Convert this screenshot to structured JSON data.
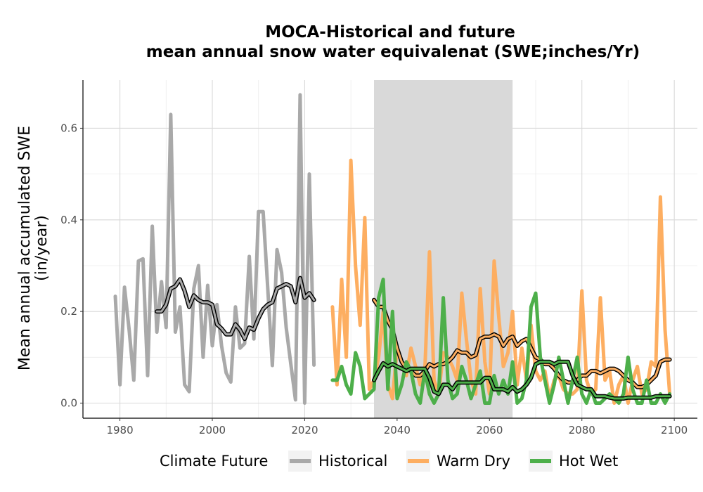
{
  "chart_data": {
    "type": "line",
    "title": "MOCA-Historical and future",
    "subtitle": "mean annual snow water equivalenat (SWE;inches/Yr)",
    "ylabel_line1": "Mean annual accumulated SWE",
    "ylabel_line2": "(in/year)",
    "xlabel": "",
    "xlim": [
      1972,
      2105
    ],
    "ylim": [
      -0.033,
      0.705
    ],
    "x_ticks": [
      1980,
      2000,
      2020,
      2040,
      2060,
      2080,
      2100
    ],
    "y_ticks": [
      0.0,
      0.2,
      0.4,
      0.6
    ],
    "y_tick_labels": [
      "0.0",
      "0.2",
      "0.4",
      "0.6"
    ],
    "grid": true,
    "shaded_period": [
      2035,
      2065
    ],
    "shade_color": "#d9d9d9",
    "legend": {
      "title": "Climate Future",
      "position": "bottom",
      "items": [
        {
          "label": "Historical",
          "color": "#a9a9a9"
        },
        {
          "label": "Warm Dry",
          "color": "#fdae61"
        },
        {
          "label": "Hot Wet",
          "color": "#4daf4a"
        }
      ]
    },
    "series": [
      {
        "name": "Historical",
        "color": "#a9a9a9",
        "x": [
          1979,
          1980,
          1981,
          1982,
          1983,
          1984,
          1985,
          1986,
          1987,
          1988,
          1989,
          1990,
          1991,
          1992,
          1993,
          1994,
          1995,
          1996,
          1997,
          1998,
          1999,
          2000,
          2001,
          2002,
          2003,
          2004,
          2005,
          2006,
          2007,
          2008,
          2009,
          2010,
          2011,
          2012,
          2013,
          2014,
          2015,
          2016,
          2017,
          2018,
          2019,
          2020,
          2021,
          2022
        ],
        "values": [
          0.233,
          0.04,
          0.253,
          0.16,
          0.05,
          0.31,
          0.315,
          0.06,
          0.386,
          0.155,
          0.265,
          0.165,
          0.63,
          0.155,
          0.21,
          0.04,
          0.025,
          0.25,
          0.3,
          0.1,
          0.257,
          0.125,
          0.215,
          0.126,
          0.066,
          0.046,
          0.21,
          0.12,
          0.13,
          0.32,
          0.14,
          0.418,
          0.418,
          0.25,
          0.082,
          0.335,
          0.285,
          0.165,
          0.085,
          0.007,
          0.673,
          0.0,
          0.5,
          0.083
        ]
      },
      {
        "name": "Historical smoothed",
        "color": "#000000",
        "x": [
          1988,
          1989,
          1990,
          1991,
          1992,
          1993,
          1994,
          1995,
          1996,
          1997,
          1998,
          1999,
          2000,
          2001,
          2002,
          2003,
          2004,
          2005,
          2006,
          2007,
          2008,
          2009,
          2010,
          2011,
          2012,
          2013,
          2014,
          2015,
          2016,
          2017,
          2018,
          2019,
          2020,
          2021,
          2022
        ],
        "values": [
          0.2,
          0.2,
          0.215,
          0.25,
          0.255,
          0.27,
          0.245,
          0.21,
          0.235,
          0.225,
          0.22,
          0.22,
          0.215,
          0.172,
          0.163,
          0.15,
          0.15,
          0.172,
          0.16,
          0.14,
          0.165,
          0.16,
          0.185,
          0.205,
          0.215,
          0.22,
          0.25,
          0.255,
          0.26,
          0.255,
          0.22,
          0.273,
          0.23,
          0.24,
          0.225
        ]
      },
      {
        "name": "Warm Dry",
        "color": "#fdae61",
        "x": [
          2026,
          2027,
          2028,
          2029,
          2030,
          2031,
          2032,
          2033,
          2034,
          2035,
          2036,
          2037,
          2038,
          2039,
          2040,
          2041,
          2042,
          2043,
          2044,
          2045,
          2046,
          2047,
          2048,
          2049,
          2050,
          2051,
          2052,
          2053,
          2054,
          2055,
          2056,
          2057,
          2058,
          2059,
          2060,
          2061,
          2062,
          2063,
          2064,
          2065,
          2066,
          2067,
          2068,
          2069,
          2070,
          2071,
          2072,
          2073,
          2074,
          2075,
          2076,
          2077,
          2078,
          2079,
          2080,
          2081,
          2082,
          2083,
          2084,
          2085,
          2086,
          2087,
          2088,
          2089,
          2090,
          2091,
          2092,
          2093,
          2094,
          2095,
          2096,
          2097,
          2098,
          2099
        ],
        "values": [
          0.21,
          0.04,
          0.27,
          0.1,
          0.53,
          0.3,
          0.17,
          0.405,
          0.03,
          0.05,
          0.1,
          0.2,
          0.04,
          0.01,
          0.12,
          0.09,
          0.06,
          0.12,
          0.08,
          0.04,
          0.07,
          0.33,
          0.05,
          0.02,
          0.11,
          0.1,
          0.08,
          0.05,
          0.24,
          0.14,
          0.05,
          0.02,
          0.25,
          0.09,
          0.02,
          0.31,
          0.19,
          0.08,
          0.11,
          0.2,
          0.04,
          0.12,
          0.05,
          0.17,
          0.07,
          0.05,
          0.07,
          0.01,
          0.05,
          0.06,
          0.03,
          0.02,
          0.02,
          0.03,
          0.245,
          0.05,
          0.02,
          0.03,
          0.23,
          0.05,
          0.07,
          0.0,
          0.04,
          0.06,
          0.0,
          0.05,
          0.08,
          0.02,
          0.03,
          0.09,
          0.08,
          0.45,
          0.16,
          0.02
        ]
      },
      {
        "name": "Warm Dry smoothed",
        "color": "#000000",
        "x": [
          2035,
          2036,
          2037,
          2038,
          2039,
          2040,
          2041,
          2042,
          2043,
          2044,
          2045,
          2046,
          2047,
          2048,
          2049,
          2050,
          2051,
          2052,
          2053,
          2054,
          2055,
          2056,
          2057,
          2058,
          2059,
          2060,
          2061,
          2062,
          2063,
          2064,
          2065,
          2066,
          2067,
          2068,
          2069,
          2070,
          2071,
          2072,
          2073,
          2074,
          2075,
          2076,
          2077,
          2078,
          2079,
          2080,
          2081,
          2082,
          2083,
          2084,
          2085,
          2086,
          2087,
          2088,
          2089,
          2090,
          2091,
          2092,
          2093,
          2094,
          2095,
          2096,
          2097,
          2098,
          2099
        ],
        "values": [
          0.225,
          0.21,
          0.21,
          0.18,
          0.16,
          0.12,
          0.09,
          0.075,
          0.07,
          0.06,
          0.06,
          0.07,
          0.085,
          0.08,
          0.085,
          0.085,
          0.09,
          0.1,
          0.115,
          0.11,
          0.11,
          0.1,
          0.105,
          0.14,
          0.145,
          0.145,
          0.15,
          0.145,
          0.125,
          0.14,
          0.145,
          0.125,
          0.135,
          0.14,
          0.12,
          0.1,
          0.095,
          0.085,
          0.085,
          0.075,
          0.06,
          0.05,
          0.045,
          0.045,
          0.05,
          0.06,
          0.06,
          0.07,
          0.07,
          0.065,
          0.07,
          0.075,
          0.075,
          0.07,
          0.06,
          0.05,
          0.045,
          0.035,
          0.035,
          0.04,
          0.05,
          0.06,
          0.09,
          0.095,
          0.095
        ]
      },
      {
        "name": "Hot Wet",
        "color": "#4daf4a",
        "x": [
          2026,
          2027,
          2028,
          2029,
          2030,
          2031,
          2032,
          2033,
          2034,
          2035,
          2036,
          2037,
          2038,
          2039,
          2040,
          2041,
          2042,
          2043,
          2044,
          2045,
          2046,
          2047,
          2048,
          2049,
          2050,
          2051,
          2052,
          2053,
          2054,
          2055,
          2056,
          2057,
          2058,
          2059,
          2060,
          2061,
          2062,
          2063,
          2064,
          2065,
          2066,
          2067,
          2068,
          2069,
          2070,
          2071,
          2072,
          2073,
          2074,
          2075,
          2076,
          2077,
          2078,
          2079,
          2080,
          2081,
          2082,
          2083,
          2084,
          2085,
          2086,
          2087,
          2088,
          2089,
          2090,
          2091,
          2092,
          2093,
          2094,
          2095,
          2096,
          2097,
          2098,
          2099
        ],
        "values": [
          0.05,
          0.05,
          0.08,
          0.04,
          0.02,
          0.11,
          0.08,
          0.01,
          0.02,
          0.03,
          0.23,
          0.27,
          0.03,
          0.2,
          0.01,
          0.04,
          0.09,
          0.07,
          0.02,
          0.0,
          0.07,
          0.02,
          0.0,
          0.02,
          0.23,
          0.05,
          0.01,
          0.02,
          0.08,
          0.05,
          0.01,
          0.04,
          0.07,
          0.0,
          0.0,
          0.06,
          0.02,
          0.05,
          0.02,
          0.09,
          0.0,
          0.01,
          0.05,
          0.21,
          0.24,
          0.1,
          0.05,
          0.0,
          0.04,
          0.1,
          0.05,
          0.0,
          0.05,
          0.1,
          0.02,
          0.0,
          0.03,
          0.0,
          0.0,
          0.01,
          0.02,
          0.01,
          0.0,
          0.02,
          0.1,
          0.03,
          0.0,
          0.0,
          0.05,
          0.0,
          0.0,
          0.02,
          0.0,
          0.02
        ]
      },
      {
        "name": "Hot Wet smoothed",
        "color": "#000000",
        "x": [
          2035,
          2036,
          2037,
          2038,
          2039,
          2040,
          2041,
          2042,
          2043,
          2044,
          2045,
          2046,
          2047,
          2048,
          2049,
          2050,
          2051,
          2052,
          2053,
          2054,
          2055,
          2056,
          2057,
          2058,
          2059,
          2060,
          2061,
          2062,
          2063,
          2064,
          2065,
          2066,
          2067,
          2068,
          2069,
          2070,
          2071,
          2072,
          2073,
          2074,
          2075,
          2076,
          2077,
          2078,
          2079,
          2080,
          2081,
          2082,
          2083,
          2084,
          2085,
          2086,
          2087,
          2088,
          2089,
          2090,
          2091,
          2092,
          2093,
          2094,
          2095,
          2096,
          2097,
          2098,
          2099
        ],
        "values": [
          0.05,
          0.07,
          0.087,
          0.08,
          0.085,
          0.08,
          0.075,
          0.07,
          0.075,
          0.075,
          0.075,
          0.075,
          0.055,
          0.025,
          0.02,
          0.04,
          0.04,
          0.03,
          0.045,
          0.045,
          0.045,
          0.045,
          0.045,
          0.045,
          0.055,
          0.055,
          0.03,
          0.03,
          0.03,
          0.025,
          0.035,
          0.025,
          0.03,
          0.04,
          0.055,
          0.085,
          0.09,
          0.09,
          0.09,
          0.085,
          0.09,
          0.09,
          0.09,
          0.06,
          0.04,
          0.035,
          0.03,
          0.03,
          0.015,
          0.015,
          0.015,
          0.012,
          0.01,
          0.01,
          0.01,
          0.012,
          0.012,
          0.012,
          0.012,
          0.012,
          0.012,
          0.015,
          0.015,
          0.015,
          0.015
        ]
      }
    ]
  }
}
